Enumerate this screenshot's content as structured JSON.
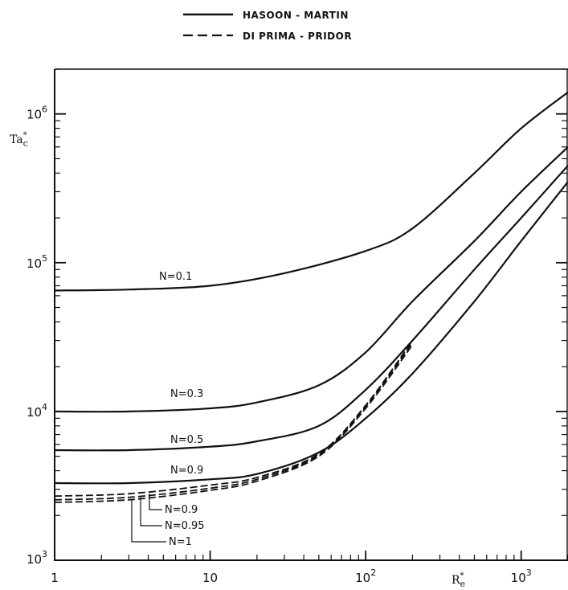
{
  "chart_data": {
    "type": "line",
    "xscale": "log",
    "yscale": "log",
    "xlim": [
      1,
      2000
    ],
    "ylim": [
      1000,
      2000000
    ],
    "xticks": [
      {
        "value": 1,
        "label": "1"
      },
      {
        "value": 10,
        "label": "10"
      },
      {
        "value": 100,
        "label": "10",
        "exp": "2"
      },
      {
        "value": 1000,
        "label": "10",
        "exp": "3"
      }
    ],
    "yticks": [
      {
        "value": 1000,
        "label": "10",
        "exp": "3"
      },
      {
        "value": 10000,
        "label": "10",
        "exp": "4"
      },
      {
        "value": 100000,
        "label": "10",
        "exp": "5"
      },
      {
        "value": 1000000,
        "label": "10",
        "exp": "6"
      }
    ],
    "xlabel": {
      "base": "R",
      "sup": "*",
      "sub": "e"
    },
    "ylabel": {
      "base": "Ta",
      "sup": "*",
      "sub": "c"
    },
    "legend": {
      "placement": "top-center",
      "entries": [
        {
          "label": "HASOON - MARTIN",
          "style": "solid"
        },
        {
          "label": "DI PRIMA - PRIDOR",
          "style": "dashed"
        }
      ]
    },
    "series": [
      {
        "name": "N=0.1",
        "style": "solid",
        "x": [
          1,
          3,
          10,
          30,
          100,
          200,
          500,
          1000,
          2000
        ],
        "y": [
          65000,
          66000,
          70000,
          85000,
          120000,
          170000,
          400000,
          800000,
          1400000
        ]
      },
      {
        "name": "N=0.3",
        "style": "solid",
        "x": [
          1,
          3,
          10,
          20,
          50,
          100,
          200,
          500,
          1000,
          2000
        ],
        "y": [
          10000,
          10000,
          10500,
          11500,
          15000,
          25000,
          55000,
          140000,
          300000,
          600000
        ]
      },
      {
        "name": "N=0.5",
        "style": "solid",
        "x": [
          1,
          3,
          10,
          20,
          50,
          100,
          200,
          500,
          1000,
          2000
        ],
        "y": [
          5500,
          5500,
          5800,
          6300,
          8000,
          14000,
          30000,
          90000,
          200000,
          450000
        ]
      },
      {
        "name": "N=0.9",
        "style": "solid",
        "x": [
          1,
          3,
          10,
          20,
          50,
          100,
          200,
          500,
          1000,
          2000
        ],
        "y": [
          3300,
          3300,
          3500,
          3800,
          5300,
          9000,
          18000,
          55000,
          140000,
          350000
        ]
      },
      {
        "name": "N=0.9",
        "style": "dashed",
        "x": [
          1,
          3,
          10,
          20,
          50,
          100,
          200
        ],
        "y": [
          2700,
          2800,
          3200,
          3600,
          5200,
          11000,
          30000
        ]
      },
      {
        "name": "N=0.95",
        "style": "dashed",
        "x": [
          1,
          3,
          10,
          20,
          50,
          100,
          200
        ],
        "y": [
          2550,
          2650,
          3050,
          3500,
          5100,
          10800,
          29000
        ]
      },
      {
        "name": "N=1",
        "style": "dashed",
        "x": [
          1,
          3,
          10,
          20,
          50,
          100,
          200
        ],
        "y": [
          2450,
          2550,
          2950,
          3400,
          5000,
          10500,
          28000
        ]
      }
    ],
    "annotations": [
      {
        "text": "N=0.1",
        "series": 0
      },
      {
        "text": "N=0.3",
        "series": 1
      },
      {
        "text": "N=0.5",
        "series": 2
      },
      {
        "text": "N=0.9",
        "series": 3
      },
      {
        "text": "N=0.9",
        "series": 4
      },
      {
        "text": "N=0.95",
        "series": 5
      },
      {
        "text": "N=1",
        "series": 6
      }
    ]
  }
}
